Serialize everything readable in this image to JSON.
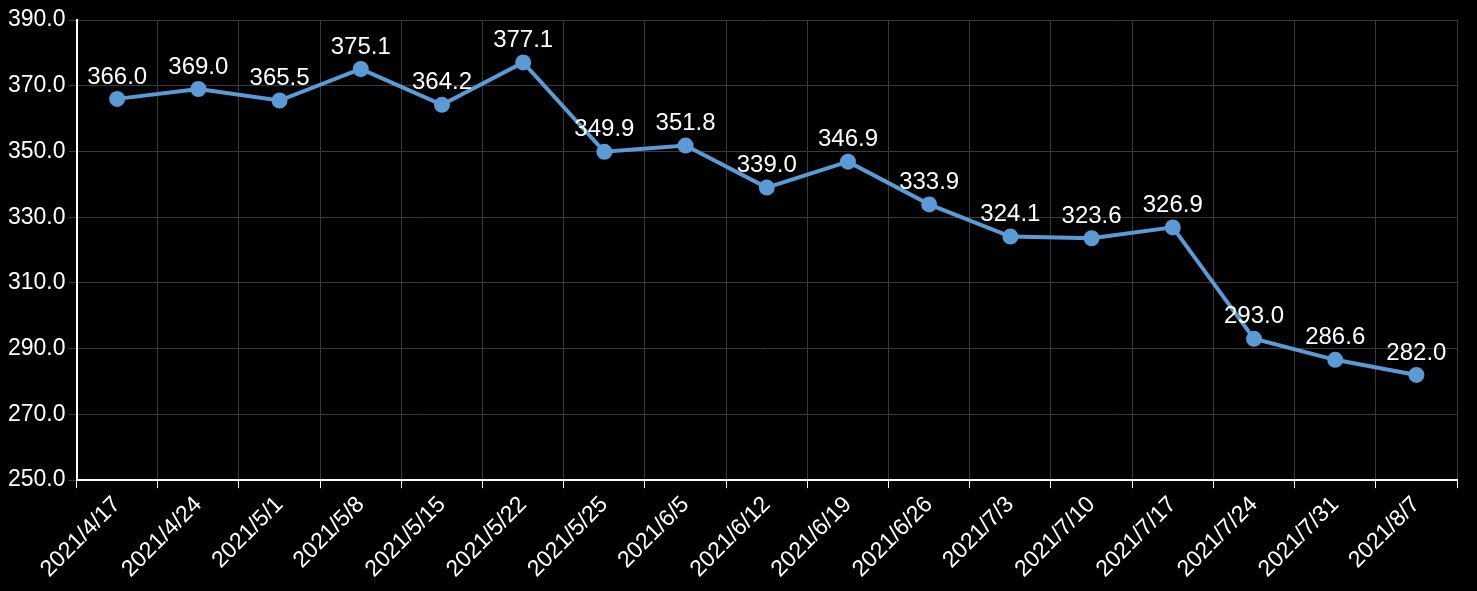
{
  "chart_data": {
    "type": "line",
    "categories": [
      "2021/4/17",
      "2021/4/24",
      "2021/5/1",
      "2021/5/8",
      "2021/5/15",
      "2021/5/22",
      "2021/5/25",
      "2021/6/5",
      "2021/6/12",
      "2021/6/19",
      "2021/6/26",
      "2021/7/3",
      "2021/7/10",
      "2021/7/17",
      "2021/7/24",
      "2021/7/31",
      "2021/8/7"
    ],
    "values": [
      366.0,
      369.0,
      365.5,
      375.1,
      364.2,
      377.1,
      349.9,
      351.8,
      339.0,
      346.9,
      333.9,
      324.1,
      323.6,
      326.9,
      293.0,
      286.6,
      282.0
    ],
    "value_labels": [
      "366.0",
      "369.0",
      "365.5",
      "375.1",
      "364.2",
      "377.1",
      "349.9",
      "351.8",
      "339.0",
      "346.9",
      "333.9",
      "324.1",
      "323.6",
      "326.9",
      "293.0",
      "286.6",
      "282.0"
    ],
    "color": "#5b9bd5",
    "marker": "circle",
    "ylim": [
      250,
      390
    ],
    "yticks": [
      {
        "value": 250,
        "label": "250.0"
      },
      {
        "value": 270,
        "label": "270.0"
      },
      {
        "value": 290,
        "label": "290.0"
      },
      {
        "value": 310,
        "label": "310.0"
      },
      {
        "value": 330,
        "label": "330.0"
      },
      {
        "value": 350,
        "label": "350.0"
      },
      {
        "value": 370,
        "label": "370.0"
      },
      {
        "value": 390,
        "label": "390.0"
      }
    ],
    "grid": true,
    "data_labels": true
  }
}
